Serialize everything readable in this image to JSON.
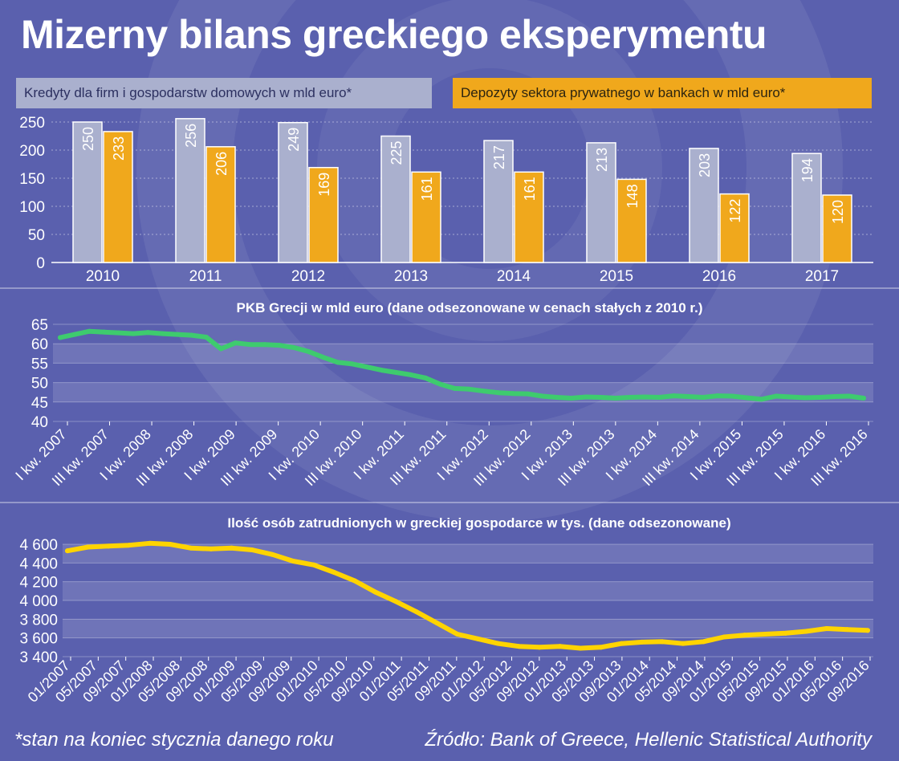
{
  "page": {
    "title": "Mizerny bilans greckiego eksperymentu",
    "footnote": "*stan na koniec stycznia danego roku",
    "source": "Źródło: Bank of Greece, Hellenic Statistical Authority"
  },
  "colors": {
    "background": "#5a60ae",
    "loans_bar": "#aab0ce",
    "deposits_bar": "#f0a81c",
    "gdp_line": "#3ecb6e",
    "employment_line": "#ffd400"
  },
  "chart_data": [
    {
      "type": "bar",
      "title": "",
      "categories": [
        "2010",
        "2011",
        "2012",
        "2013",
        "2014",
        "2015",
        "2016",
        "2017"
      ],
      "series": [
        {
          "name": "Kredyty dla firm i gospodarstw domowych w mld euro*",
          "values": [
            250,
            256,
            249,
            225,
            217,
            213,
            203,
            194
          ]
        },
        {
          "name": "Depozyty sektora prywatnego w bankach w mld euro*",
          "values": [
            233,
            206,
            169,
            161,
            161,
            148,
            122,
            120
          ]
        }
      ],
      "yticks": [
        "0",
        "50",
        "100",
        "150",
        "200",
        "250"
      ],
      "ylim": [
        0,
        260
      ],
      "grid": true,
      "legend": "top"
    },
    {
      "type": "line",
      "title": "PKB Grecji w mld euro (dane odsezonowane w cenach stałych z 2010 r.)",
      "x_labels": [
        "I kw. 2007",
        "III kw. 2007",
        "I kw. 2008",
        "III kw. 2008",
        "I kw. 2009",
        "III kw. 2009",
        "I kw. 2010",
        "III kw. 2010",
        "I kw. 2011",
        "III kw. 2011",
        "I kw. 2012",
        "III kw. 2012",
        "I kw. 2013",
        "III kw. 2013",
        "I kw. 2014",
        "III kw. 2014",
        "I kw. 2015",
        "III kw. 2015",
        "I kw. 2016",
        "III kw. 2016"
      ],
      "series": [
        {
          "name": "",
          "values": [
            61.6,
            62.4,
            63.2,
            63.0,
            62.8,
            62.6,
            62.9,
            62.6,
            62.4,
            62.2,
            61.7,
            58.7,
            60.2,
            59.8,
            59.8,
            59.6,
            59.0,
            58.0,
            56.5,
            55.2,
            54.8,
            54.0,
            53.2,
            52.6,
            52.0,
            51.2,
            49.6,
            48.5,
            48.3,
            47.8,
            47.4,
            47.2,
            47.1,
            46.5,
            46.2,
            46.0,
            46.3,
            46.2,
            46.0,
            46.2,
            46.3,
            46.2,
            46.6,
            46.4,
            46.2,
            46.6,
            46.5,
            46.1,
            45.7,
            46.5,
            46.3,
            46.1,
            46.2,
            46.4,
            46.5,
            46.0
          ]
        }
      ],
      "yticks": [
        "40",
        "45",
        "50",
        "55",
        "60",
        "65"
      ],
      "ylim": [
        40,
        65
      ],
      "grid": true
    },
    {
      "type": "line",
      "title": "Ilość osób zatrudnionych w greckiej gospodarce w tys. (dane odsezonowane)",
      "x_labels": [
        "01/2007",
        "05/2007",
        "09/2007",
        "01/2008",
        "05/2008",
        "09/2008",
        "01/2009",
        "05/2009",
        "09/2009",
        "01/2010",
        "05/2010",
        "09/2010",
        "01/2011",
        "05/2011",
        "09/2011",
        "01/2012",
        "05/2012",
        "09/2012",
        "01/2013",
        "05/2013",
        "09/2013",
        "01/2014",
        "05/2014",
        "09/2014",
        "01/2015",
        "05/2015",
        "09/2015",
        "01/2016",
        "05/2016",
        "09/2016"
      ],
      "series": [
        {
          "name": "",
          "values": [
            4530,
            4570,
            4580,
            4590,
            4610,
            4600,
            4560,
            4550,
            4560,
            4540,
            4490,
            4420,
            4380,
            4300,
            4210,
            4090,
            3990,
            3880,
            3760,
            3640,
            3590,
            3540,
            3510,
            3500,
            3510,
            3490,
            3500,
            3540,
            3555,
            3560,
            3540,
            3560,
            3610,
            3630,
            3640,
            3650,
            3670,
            3700,
            3690,
            3680
          ]
        }
      ],
      "yticks": [
        "3 400",
        "3 600",
        "3 800",
        "4 000",
        "4 200",
        "4 400",
        "4 600"
      ],
      "ylim": [
        3400,
        4600
      ],
      "grid": true
    }
  ]
}
